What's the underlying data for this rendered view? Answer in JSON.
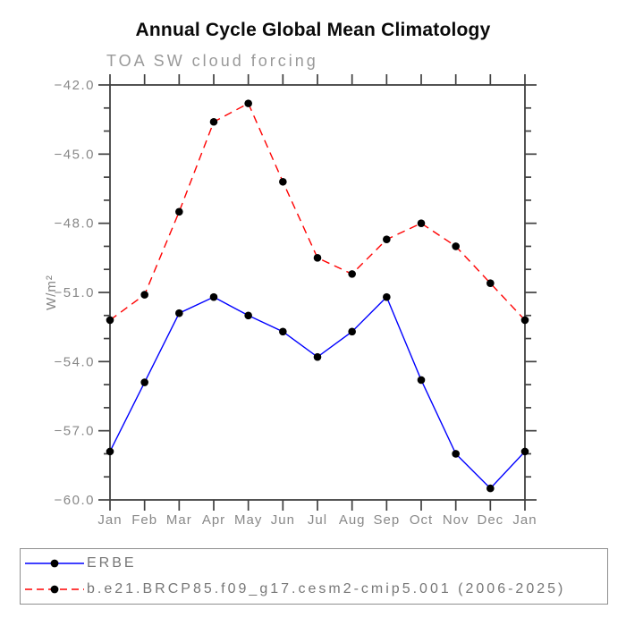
{
  "chart_data": {
    "type": "line",
    "title": "Annual Cycle Global Mean Climatology",
    "subtitle": "TOA SW cloud forcing",
    "ylabel": "W/m²",
    "xlabel": "",
    "categories": [
      "Jan",
      "Feb",
      "Mar",
      "Apr",
      "May",
      "Jun",
      "Jul",
      "Aug",
      "Sep",
      "Oct",
      "Nov",
      "Dec",
      "Jan"
    ],
    "ylim": [
      -60,
      -42
    ],
    "ytick_major_step": 3,
    "ytick_minor_step": 1,
    "ytick_labels": [
      "−42.0",
      "−45.0",
      "−48.0",
      "−51.0",
      "−54.0",
      "−57.0",
      "−60.0"
    ],
    "grid": false,
    "legend_position": "bottom-left box",
    "marker": {
      "shape": "circle",
      "color": "#000000",
      "radius": 4.3
    },
    "series": [
      {
        "name": "ERBE",
        "color": "#0000ff",
        "line_style": "solid",
        "values": [
          -57.9,
          -54.9,
          -51.9,
          -51.2,
          -52.0,
          -52.7,
          -53.8,
          -52.7,
          -51.2,
          -54.8,
          -58.0,
          -59.5,
          -57.9
        ]
      },
      {
        "name": "b.e21.BRCP85.f09_g17.cesm2-cmip5.001 (2006-2025)",
        "color": "#ff0000",
        "line_style": "dashed",
        "values": [
          -52.2,
          -51.1,
          -47.5,
          -43.6,
          -42.8,
          -46.2,
          -49.5,
          -50.2,
          -48.7,
          -48.0,
          -49.0,
          -50.6,
          -52.2
        ]
      }
    ]
  },
  "colors": {
    "axis": "#404040",
    "tick_label": "#888888",
    "axis_title": "#858585",
    "title": "#0a0a0a",
    "subtitle": "#999999",
    "legend_text": "#777777",
    "legend_border": "#8f8f8f"
  }
}
